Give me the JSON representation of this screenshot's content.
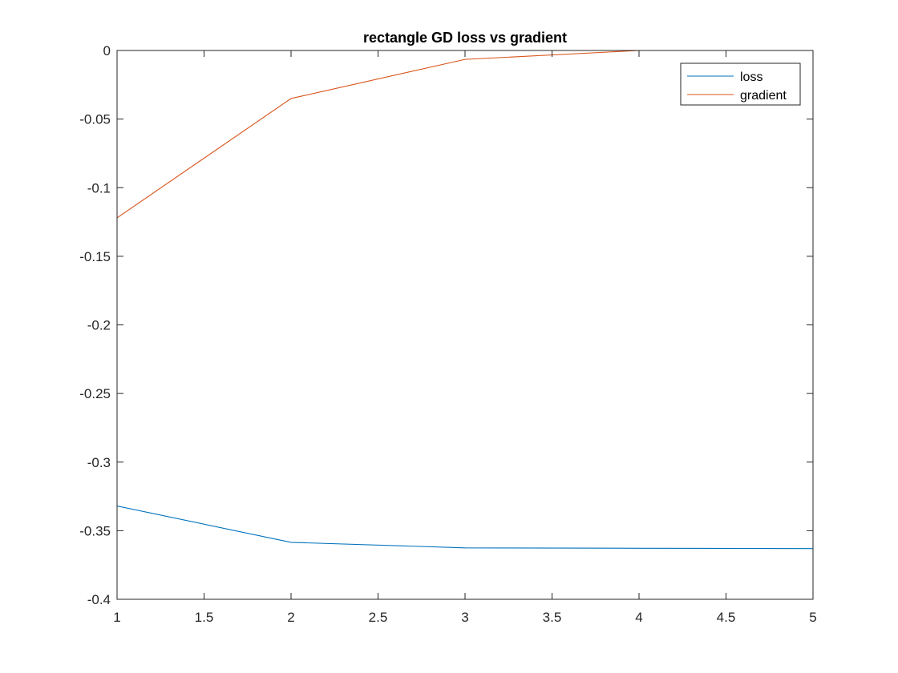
{
  "chart_data": {
    "type": "line",
    "title": "rectangle GD loss vs gradient",
    "xlabel": "",
    "ylabel": "",
    "x": [
      1,
      2,
      3,
      4,
      5
    ],
    "xlim": [
      1,
      5
    ],
    "ylim": [
      -0.4,
      0
    ],
    "xticks": [
      1,
      1.5,
      2,
      2.5,
      3,
      3.5,
      4,
      4.5,
      5
    ],
    "xtick_labels": [
      "1",
      "1.5",
      "2",
      "2.5",
      "3",
      "3.5",
      "4",
      "4.5",
      "5"
    ],
    "yticks": [
      -0.4,
      -0.35,
      -0.3,
      -0.25,
      -0.2,
      -0.15,
      -0.1,
      -0.05,
      0
    ],
    "ytick_labels": [
      "-0.4",
      "-0.35",
      "-0.3",
      "-0.25",
      "-0.2",
      "-0.15",
      "-0.1",
      "-0.05",
      "0"
    ],
    "grid": false,
    "legend_position": "top-right",
    "series": [
      {
        "name": "loss",
        "color": "#0072BD",
        "values": [
          -0.332,
          -0.3585,
          -0.3625,
          -0.3628,
          -0.363
        ]
      },
      {
        "name": "gradient",
        "color": "#D95319",
        "values": [
          -0.122,
          -0.035,
          -0.0065,
          0.0,
          0.0
        ]
      }
    ]
  }
}
